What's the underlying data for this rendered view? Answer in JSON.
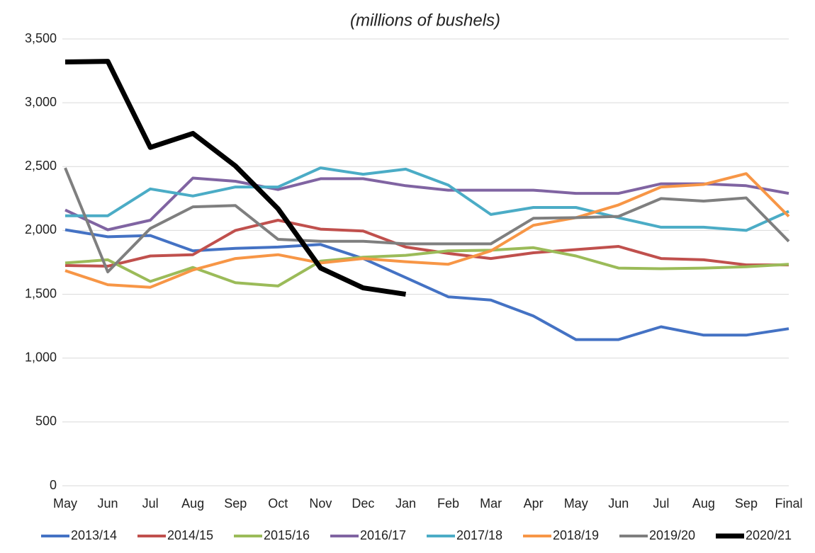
{
  "chart_data": {
    "type": "line",
    "subtitle": "(millions of bushels)",
    "categories": [
      "May",
      "Jun",
      "Jul",
      "Aug",
      "Sep",
      "Oct",
      "Nov",
      "Dec",
      "Jan",
      "Feb",
      "Mar",
      "Apr",
      "May",
      "Jun",
      "Jul",
      "Aug",
      "Sep",
      "Final"
    ],
    "ylim": [
      0,
      3500
    ],
    "yticks": [
      0,
      500,
      {
        "value": 1000,
        "label": "1,000"
      },
      {
        "value": 1500,
        "label": "1,500"
      },
      {
        "value": 2000,
        "label": "2,000"
      },
      {
        "value": 2500,
        "label": "2,500"
      },
      {
        "value": 3000,
        "label": "3,000"
      },
      {
        "value": 3500,
        "label": "3,500"
      }
    ],
    "grid": true,
    "legend": "bottom",
    "series": [
      {
        "name": "2013/14",
        "color": "#4472c4",
        "values": [
          2005,
          1950,
          1960,
          1840,
          1860,
          1870,
          1890,
          1780,
          1630,
          1480,
          1455,
          1330,
          1145,
          1145,
          1245,
          1180,
          1180,
          1230
        ]
      },
      {
        "name": "2014/15",
        "color": "#c0504d",
        "values": [
          1725,
          1720,
          1800,
          1810,
          2000,
          2080,
          2010,
          1995,
          1870,
          1820,
          1780,
          1825,
          1850,
          1875,
          1780,
          1770,
          1730,
          1730
        ]
      },
      {
        "name": "2015/16",
        "color": "#9bbb59",
        "values": [
          1745,
          1770,
          1600,
          1710,
          1590,
          1565,
          1760,
          1790,
          1805,
          1840,
          1845,
          1865,
          1800,
          1705,
          1700,
          1705,
          1715,
          1735
        ]
      },
      {
        "name": "2016/17",
        "color": "#8064a2",
        "values": [
          2160,
          2005,
          2080,
          2410,
          2385,
          2320,
          2405,
          2405,
          2350,
          2315,
          2315,
          2315,
          2290,
          2290,
          2365,
          2365,
          2350,
          2290
        ]
      },
      {
        "name": "2017/18",
        "color": "#4bacc6",
        "values": [
          2115,
          2115,
          2325,
          2270,
          2340,
          2340,
          2490,
          2440,
          2480,
          2355,
          2125,
          2180,
          2180,
          2100,
          2025,
          2025,
          2000,
          2150
        ]
      },
      {
        "name": "2018/19",
        "color": "#f79646",
        "values": [
          1685,
          1575,
          1555,
          1690,
          1780,
          1810,
          1745,
          1780,
          1755,
          1735,
          1840,
          2040,
          2100,
          2200,
          2340,
          2360,
          2445,
          2110
        ]
      },
      {
        "name": "2019/20",
        "color": "#7f7f7f",
        "values": [
          2490,
          1675,
          2015,
          2185,
          2195,
          1930,
          1915,
          1915,
          1895,
          1895,
          1895,
          2095,
          2100,
          2110,
          2250,
          2230,
          2255,
          1915
        ]
      },
      {
        "name": "2020/21",
        "color": "#000000",
        "values": [
          3320,
          3325,
          2650,
          2760,
          2505,
          2170,
          1705,
          1550,
          1500,
          null,
          null,
          null,
          null,
          null,
          null,
          null,
          null,
          null
        ]
      }
    ]
  }
}
